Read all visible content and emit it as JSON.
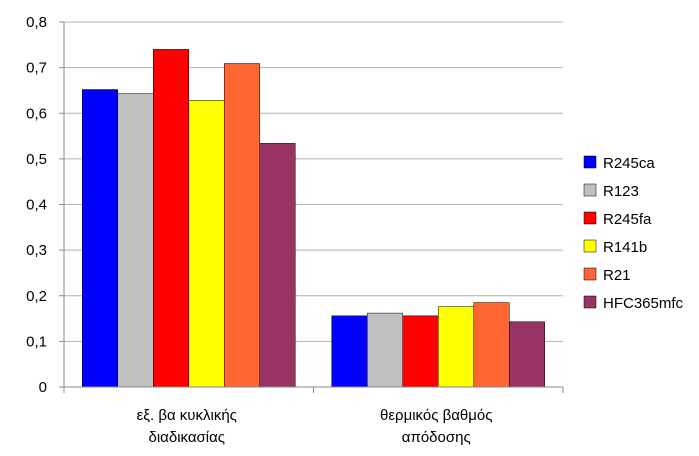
{
  "chart_data": {
    "type": "bar",
    "categories": [
      [
        "εξ. βα κυκλικής",
        "διαδικασίας"
      ],
      [
        "θερμικός βαθμός",
        "απόδοσης"
      ]
    ],
    "ylim": [
      0,
      0.8
    ],
    "y_ticks": [
      "0",
      "0,1",
      "0,2",
      "0,3",
      "0,4",
      "0,5",
      "0,6",
      "0,7",
      "0,8"
    ],
    "grid": true,
    "legend_position": "right",
    "series": [
      {
        "name": "R245ca",
        "color": "#0000ff",
        "values": [
          0.652,
          0.156
        ]
      },
      {
        "name": "R123",
        "color": "#c0c0c0",
        "values": [
          0.643,
          0.162
        ]
      },
      {
        "name": "R245fa",
        "color": "#ff0000",
        "values": [
          0.74,
          0.156
        ]
      },
      {
        "name": "R141b",
        "color": "#ffff00",
        "values": [
          0.628,
          0.176
        ]
      },
      {
        "name": "R21",
        "color": "#ff6633",
        "values": [
          0.709,
          0.185
        ]
      },
      {
        "name": "HFC365mfc",
        "color": "#993366",
        "values": [
          0.534,
          0.143
        ]
      }
    ]
  }
}
